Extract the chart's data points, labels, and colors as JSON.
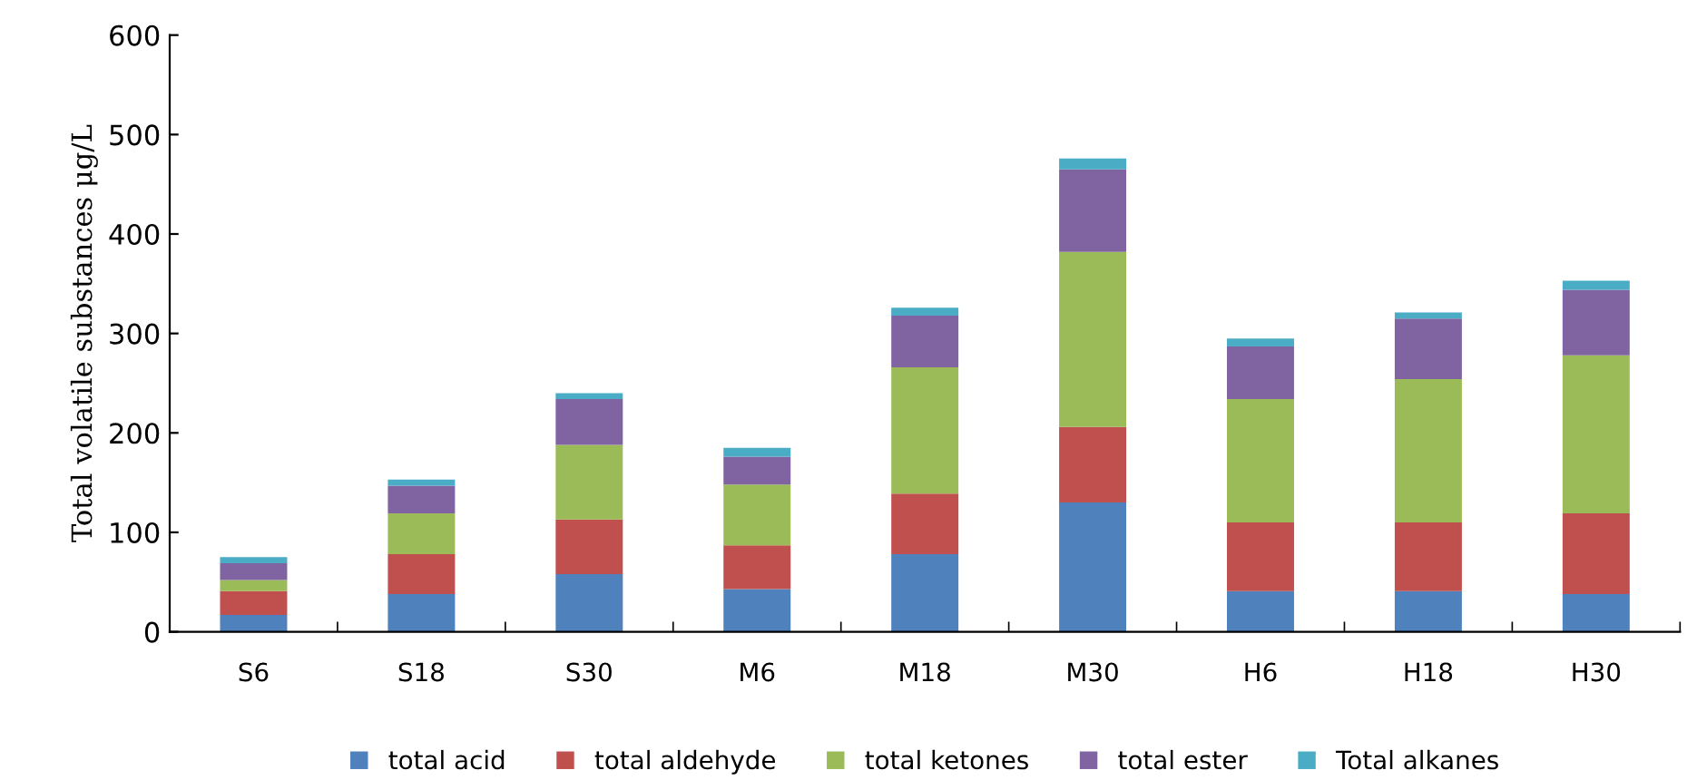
{
  "chart_data": {
    "type": "bar",
    "stacked": true,
    "ylabel": "Total volatile substances μg/L",
    "categories": [
      "S6",
      "S18",
      "S30",
      "M6",
      "M18",
      "M30",
      "H6",
      "H18",
      "H30"
    ],
    "series": [
      {
        "name": "total acid",
        "color": "#4f81bd",
        "values": [
          17,
          38,
          58,
          43,
          78,
          130,
          41,
          41,
          38
        ]
      },
      {
        "name": "total aldehyde",
        "color": "#c0504d",
        "values": [
          24,
          40,
          55,
          44,
          61,
          76,
          69,
          69,
          81
        ]
      },
      {
        "name": "total ketones",
        "color": "#9bbb59",
        "values": [
          11,
          41,
          75,
          61,
          127,
          176,
          124,
          144,
          159
        ]
      },
      {
        "name": "total ester",
        "color": "#8064a2",
        "values": [
          17,
          28,
          46,
          28,
          52,
          83,
          53,
          61,
          66
        ]
      },
      {
        "name": "Total alkanes",
        "color": "#4bacc6",
        "values": [
          6,
          6,
          6,
          9,
          8,
          11,
          8,
          6,
          9
        ]
      }
    ],
    "ylim": [
      0,
      600
    ],
    "yticks": [
      0,
      100,
      200,
      300,
      400,
      500,
      600
    ],
    "grid": false,
    "legend": "bottom"
  }
}
